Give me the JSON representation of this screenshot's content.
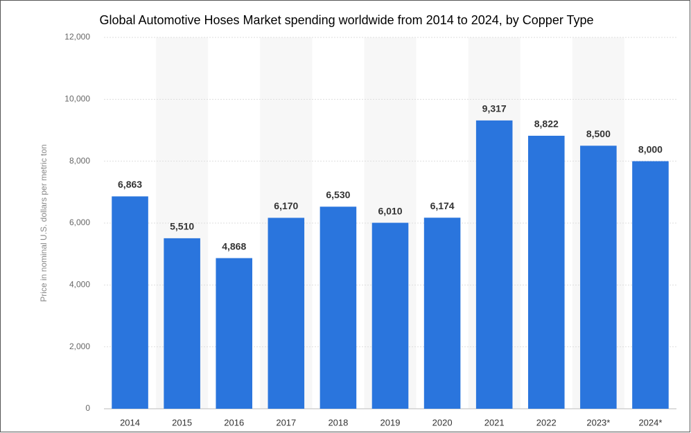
{
  "chart_data": {
    "type": "bar",
    "title": "Global Automotive Hoses Market spending worldwide from 2014 to 2024, by Copper Type",
    "y_label": "Price in nominal U.S. dollars per metric ton",
    "categories": [
      "2014",
      "2015",
      "2016",
      "2017",
      "2018",
      "2019",
      "2020",
      "2021",
      "2022",
      "2023*",
      "2024*"
    ],
    "values": [
      6863,
      5510,
      4868,
      6170,
      6530,
      6010,
      6174,
      9317,
      8822,
      8500,
      8000
    ],
    "value_labels": [
      "6,863",
      "5,510",
      "4,868",
      "6,170",
      "6,530",
      "6,010",
      "6,174",
      "9,317",
      "8,822",
      "8,500",
      "8,000"
    ],
    "color": "#2a75dd",
    "ylim": [
      0,
      12000
    ],
    "yticks": [
      0,
      {
        "value": 2000,
        "label": "2,000"
      },
      {
        "value": 4000,
        "label": "4,000"
      },
      {
        "value": 6000,
        "label": "6,000"
      },
      {
        "value": 8000,
        "label": "8,000"
      },
      {
        "value": 10000,
        "label": "10,000"
      },
      {
        "value": 12000,
        "label": "12,000"
      }
    ],
    "grid": true
  }
}
